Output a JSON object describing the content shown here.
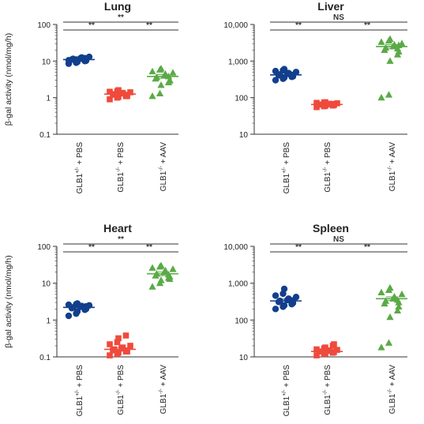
{
  "figure": {
    "ylabel": "β-gal activity (nmol/mg/h)"
  },
  "chart_data": [
    {
      "type": "scatter",
      "title": "Lung",
      "ylabel": "β-gal activity (nmol/mg/h)",
      "yscale": "log",
      "ylim": [
        0.1,
        100
      ],
      "yticks": [
        "0.1",
        "1",
        "10",
        "100"
      ],
      "categories": [
        "GLB1+/- + PBS",
        "GLB1-/- + PBS",
        "GLB1-/- + AAV"
      ],
      "series": [
        {
          "category": "GLB1+/- + PBS",
          "color": "#123f8c",
          "marker": "circle",
          "mean": 11,
          "values": [
            8.5,
            9,
            9.5,
            10,
            10.5,
            11,
            11.5,
            12,
            12.5,
            13,
            10.5,
            11,
            9.8,
            12,
            10.2
          ]
        },
        {
          "category": "GLB1-/- + PBS",
          "color": "#ef4a3c",
          "marker": "square",
          "mean": 1.25,
          "values": [
            0.9,
            1.0,
            1.05,
            1.1,
            1.15,
            1.2,
            1.25,
            1.3,
            1.35,
            1.4,
            1.45,
            1.5,
            1.6,
            1.2,
            1.1
          ]
        },
        {
          "category": "GLB1-/- + AAV",
          "color": "#5aaa46",
          "marker": "triangle",
          "mean": 3.8,
          "values": [
            1.1,
            1.3,
            2.2,
            2.6,
            3.0,
            3.3,
            3.6,
            4.0,
            4.4,
            4.8,
            5.2,
            5.8,
            6.2,
            3.8,
            2.9
          ]
        }
      ],
      "comparisons": [
        {
          "from": "GLB1+/- + PBS",
          "to": "GLB1-/- + PBS",
          "label": "**"
        },
        {
          "from": "GLB1-/- + PBS",
          "to": "GLB1-/- + AAV",
          "label": "**"
        },
        {
          "from": "GLB1+/- + PBS",
          "to": "GLB1-/- + AAV",
          "label": "**"
        }
      ]
    },
    {
      "type": "scatter",
      "title": "Liver",
      "ylabel": "",
      "yscale": "log",
      "ylim": [
        10,
        10000
      ],
      "yticks": [
        "10",
        "100",
        "1,000",
        "10,000"
      ],
      "categories": [
        "GLB1+/- + PBS",
        "GLB1-/- + PBS",
        "GLB1-/- + AAV"
      ],
      "series": [
        {
          "category": "GLB1+/- + PBS",
          "color": "#123f8c",
          "marker": "circle",
          "mean": 420,
          "values": [
            300,
            330,
            350,
            370,
            390,
            410,
            430,
            450,
            470,
            500,
            530,
            560,
            600,
            420,
            380
          ]
        },
        {
          "category": "GLB1-/- + PBS",
          "color": "#ef4a3c",
          "marker": "square",
          "mean": 65,
          "values": [
            55,
            58,
            60,
            62,
            63,
            64,
            65,
            66,
            68,
            70,
            72,
            74,
            75,
            61,
            67
          ]
        },
        {
          "category": "GLB1-/- + AAV",
          "color": "#5aaa46",
          "marker": "triangle",
          "mean": 2500,
          "values": [
            100,
            120,
            1000,
            1500,
            1800,
            2000,
            2300,
            2500,
            2800,
            3000,
            3300,
            3600,
            4000,
            2200,
            2700
          ]
        }
      ],
      "comparisons": [
        {
          "from": "GLB1+/- + PBS",
          "to": "GLB1-/- + PBS",
          "label": "**"
        },
        {
          "from": "GLB1-/- + PBS",
          "to": "GLB1-/- + AAV",
          "label": "**"
        },
        {
          "from": "GLB1+/- + PBS",
          "to": "GLB1-/- + AAV",
          "label": "NS"
        }
      ]
    },
    {
      "type": "scatter",
      "title": "Heart",
      "ylabel": "β-gal activity (nmol/mg/h)",
      "yscale": "log",
      "ylim": [
        0.1,
        100
      ],
      "yticks": [
        "0.1",
        "1",
        "10",
        "100"
      ],
      "categories": [
        "GLB1+/- + PBS",
        "GLB1-/- + PBS",
        "GLB1-/- + AAV"
      ],
      "series": [
        {
          "category": "GLB1+/- + PBS",
          "color": "#123f8c",
          "marker": "circle",
          "mean": 2.2,
          "values": [
            1.3,
            1.5,
            1.7,
            1.9,
            2.0,
            2.1,
            2.2,
            2.3,
            2.4,
            2.5,
            2.6,
            2.7,
            2.8,
            2.0,
            2.35
          ]
        },
        {
          "category": "GLB1-/- + PBS",
          "color": "#ef4a3c",
          "marker": "square",
          "mean": 0.16,
          "values": [
            0.11,
            0.12,
            0.13,
            0.14,
            0.15,
            0.15,
            0.16,
            0.17,
            0.18,
            0.2,
            0.22,
            0.25,
            0.32,
            0.38,
            0.14
          ]
        },
        {
          "category": "GLB1-/- + AAV",
          "color": "#5aaa46",
          "marker": "triangle",
          "mean": 18,
          "values": [
            8,
            10,
            12,
            14,
            15,
            16,
            18,
            20,
            22,
            24,
            26,
            28,
            30,
            17,
            13
          ]
        }
      ],
      "comparisons": [
        {
          "from": "GLB1+/- + PBS",
          "to": "GLB1-/- + PBS",
          "label": "**"
        },
        {
          "from": "GLB1-/- + PBS",
          "to": "GLB1-/- + AAV",
          "label": "**"
        },
        {
          "from": "GLB1+/- + PBS",
          "to": "GLB1-/- + AAV",
          "label": "**"
        }
      ]
    },
    {
      "type": "scatter",
      "title": "Spleen",
      "ylabel": "",
      "yscale": "log",
      "ylim": [
        10,
        10000
      ],
      "yticks": [
        "10",
        "100",
        "1,000",
        "10,000"
      ],
      "categories": [
        "GLB1+/- + PBS",
        "GLB1-/- + PBS",
        "GLB1-/- + AAV"
      ],
      "series": [
        {
          "category": "GLB1+/- + PBS",
          "color": "#123f8c",
          "marker": "circle",
          "mean": 330,
          "values": [
            200,
            230,
            250,
            270,
            290,
            310,
            330,
            350,
            380,
            420,
            460,
            520,
            700,
            300,
            340
          ]
        },
        {
          "category": "GLB1-/- + PBS",
          "color": "#ef4a3c",
          "marker": "square",
          "mean": 14,
          "values": [
            11,
            12,
            12.5,
            13,
            13.5,
            14,
            14,
            14.5,
            15,
            15.5,
            16,
            17,
            18,
            20,
            22
          ]
        },
        {
          "category": "GLB1-/- + AAV",
          "color": "#5aaa46",
          "marker": "triangle",
          "mean": 380,
          "values": [
            18,
            24,
            120,
            180,
            230,
            280,
            330,
            380,
            430,
            500,
            560,
            650,
            750,
            350,
            300
          ]
        }
      ],
      "comparisons": [
        {
          "from": "GLB1+/- + PBS",
          "to": "GLB1-/- + PBS",
          "label": "**"
        },
        {
          "from": "GLB1-/- + PBS",
          "to": "GLB1-/- + AAV",
          "label": "**"
        },
        {
          "from": "GLB1+/- + PBS",
          "to": "GLB1-/- + AAV",
          "label": "NS"
        }
      ]
    }
  ]
}
